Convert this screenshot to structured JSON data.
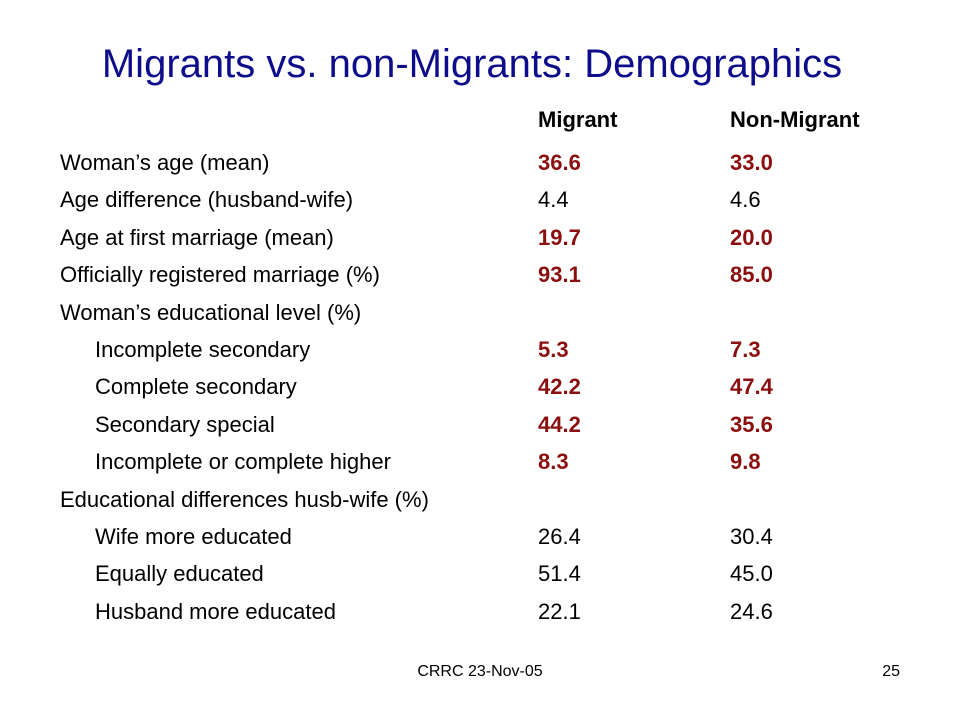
{
  "title": "Migrants vs. non-Migrants: Demographics",
  "columns": {
    "migrant": "Migrant",
    "non_migrant": "Non-Migrant"
  },
  "rows": [
    {
      "label": "Woman’s age (mean)",
      "migrant": "36.6",
      "non_migrant": "33.0",
      "highlight": true,
      "indent": false
    },
    {
      "label": "Age difference (husband-wife)",
      "migrant": "4.4",
      "non_migrant": "4.6",
      "highlight": false,
      "indent": false
    },
    {
      "label": "Age at first marriage (mean)",
      "migrant": "19.7",
      "non_migrant": "20.0",
      "highlight": true,
      "indent": false
    },
    {
      "label": "Officially registered marriage (%)",
      "migrant": "93.1",
      "non_migrant": "85.0",
      "highlight": true,
      "indent": false
    },
    {
      "label": "Woman’s educational level (%)",
      "migrant": "",
      "non_migrant": "",
      "highlight": false,
      "indent": false
    },
    {
      "label": "Incomplete secondary",
      "migrant": "5.3",
      "non_migrant": "7.3",
      "highlight": true,
      "indent": true
    },
    {
      "label": "Complete secondary",
      "migrant": "42.2",
      "non_migrant": "47.4",
      "highlight": true,
      "indent": true
    },
    {
      "label": "Secondary special",
      "migrant": "44.2",
      "non_migrant": "35.6",
      "highlight": true,
      "indent": true
    },
    {
      "label": "Incomplete or complete higher",
      "migrant": "8.3",
      "non_migrant": "9.8",
      "highlight": true,
      "indent": true
    },
    {
      "label": "Educational differences husb-wife (%)",
      "migrant": "",
      "non_migrant": "",
      "highlight": false,
      "indent": false
    },
    {
      "label": "Wife more educated",
      "migrant": "26.4",
      "non_migrant": "30.4",
      "highlight": false,
      "indent": true
    },
    {
      "label": "Equally educated",
      "migrant": "51.4",
      "non_migrant": "45.0",
      "highlight": false,
      "indent": true
    },
    {
      "label": "Husband more educated",
      "migrant": "22.1",
      "non_migrant": "24.6",
      "highlight": false,
      "indent": true
    }
  ],
  "footer": {
    "source": "CRRC 23-Nov-05",
    "page_number": "25"
  },
  "colors": {
    "title": "#0d0d8c",
    "highlight_value": "#8b0f0f",
    "text": "#000000",
    "background": "#ffffff"
  }
}
